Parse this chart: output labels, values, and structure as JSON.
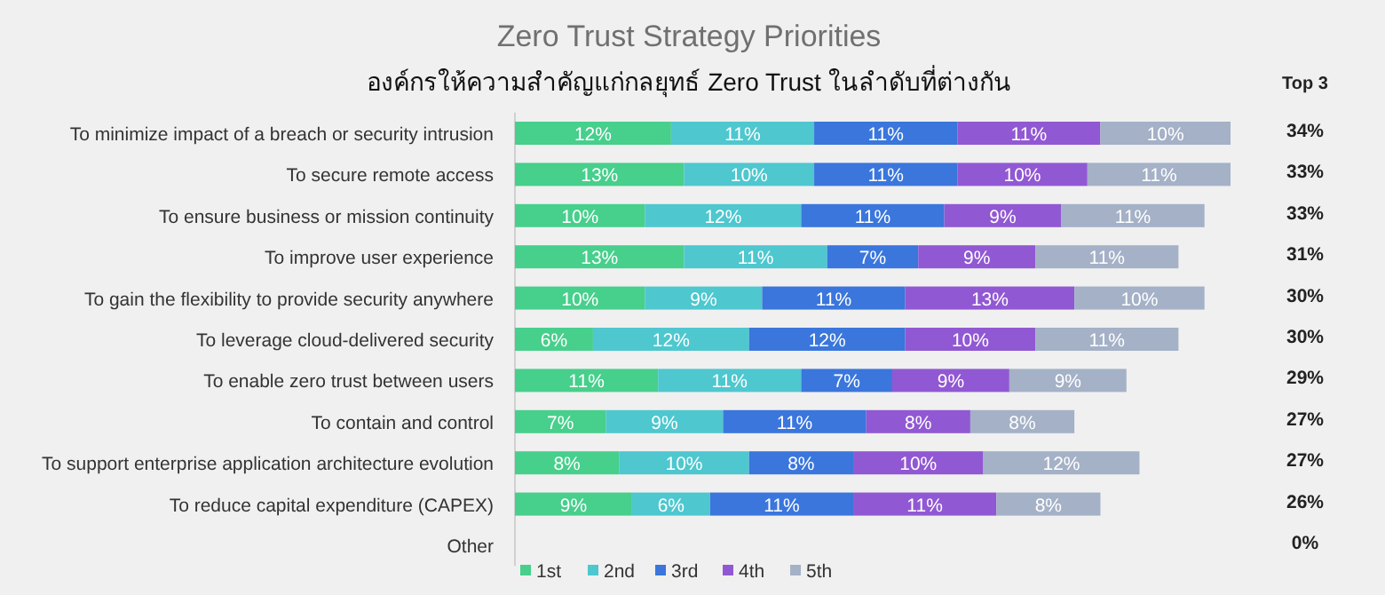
{
  "chart_data": {
    "type": "bar",
    "orientation": "horizontal",
    "stacked": true,
    "title": "Zero Trust Strategy Priorities",
    "subtitle": "องค์กรให้ความสำคัญแก่กลยุทธ์ Zero Trust ในลำดับที่ต่างกัน",
    "categories": [
      "To minimize impact of a breach or security intrusion",
      "To secure remote access",
      "To ensure business or mission continuity",
      "To improve user experience",
      "To gain the flexibility to provide security anywhere",
      "To leverage cloud-delivered security",
      "To enable zero trust between users",
      "To contain and control",
      "To support enterprise application architecture evolution",
      "To reduce capital expenditure (CAPEX)",
      "Other"
    ],
    "series": [
      {
        "name": "1st",
        "color": "#47cf8c",
        "values": [
          12,
          13,
          10,
          13,
          10,
          6,
          11,
          7,
          8,
          9,
          null
        ],
        "value_labels": [
          "12%",
          "13%",
          "10%",
          "13%",
          "10%",
          "6%",
          "11%",
          "7%",
          "8%",
          "9%",
          null
        ]
      },
      {
        "name": "2nd",
        "color": "#4ec7cf",
        "values": [
          11,
          10,
          12,
          11,
          9,
          12,
          11,
          9,
          10,
          6,
          null
        ],
        "value_labels": [
          "11%",
          "10%",
          "12%",
          "11%",
          "9%",
          "12%",
          "11%",
          "9%",
          "10%",
          "6%",
          null
        ]
      },
      {
        "name": "3rd",
        "color": "#3a76dc",
        "values": [
          11,
          11,
          11,
          7,
          11,
          12,
          7,
          11,
          8,
          11,
          null
        ],
        "value_labels": [
          "11%",
          "11%",
          "11%",
          "7%",
          "11%",
          "12%",
          "7%",
          "11%",
          "8%",
          "11%",
          null
        ]
      },
      {
        "name": "4th",
        "color": "#9158d3",
        "values": [
          11,
          10,
          9,
          9,
          13,
          10,
          9,
          8,
          10,
          11,
          null
        ],
        "value_labels": [
          "11%",
          "10%",
          "9%",
          "9%",
          "13%",
          "10%",
          "9%",
          "8%",
          "10%",
          "11%",
          null
        ]
      },
      {
        "name": "5th",
        "color": "#a4b1c7",
        "values": [
          10,
          11,
          11,
          11,
          10,
          11,
          9,
          8,
          12,
          8,
          null
        ],
        "value_labels": [
          "10%",
          "11%",
          "11%",
          "11%",
          "10%",
          "11%",
          "9%",
          "8%",
          "12%",
          "8%",
          null
        ]
      }
    ],
    "annotations": [
      "Top 3",
      "34%",
      "33%",
      "33%",
      "31%",
      "30%",
      "30%",
      "29%",
      "27%",
      "27%",
      "26%",
      "0%"
    ],
    "legend": "bottom"
  }
}
